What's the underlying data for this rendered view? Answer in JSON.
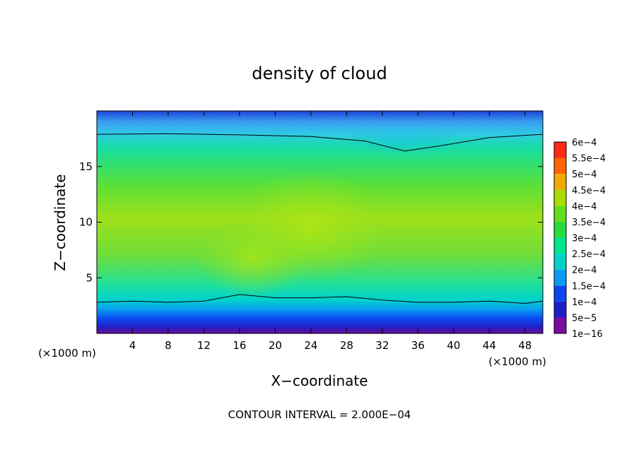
{
  "chart_data": {
    "type": "heatmap",
    "title": "density of cloud",
    "xlabel": "X−coordinate",
    "ylabel": "Z−coordinate",
    "x_unit": "(×1000 m)",
    "y_unit": "(×1000 m)",
    "xlim": [
      0,
      50
    ],
    "ylim": [
      0,
      20
    ],
    "x_ticks": [
      {
        "value": 4,
        "label": "4"
      },
      {
        "value": 8,
        "label": "8"
      },
      {
        "value": 12,
        "label": "12"
      },
      {
        "value": 16,
        "label": "16"
      },
      {
        "value": 20,
        "label": "20"
      },
      {
        "value": 24,
        "label": "24"
      },
      {
        "value": 28,
        "label": "28"
      },
      {
        "value": 32,
        "label": "32"
      },
      {
        "value": 36,
        "label": "36"
      },
      {
        "value": 40,
        "label": "40"
      },
      {
        "value": 44,
        "label": "44"
      },
      {
        "value": 48,
        "label": "48"
      }
    ],
    "y_ticks": [
      {
        "value": 5,
        "label": "5"
      },
      {
        "value": 10,
        "label": "10"
      },
      {
        "value": 15,
        "label": "15"
      }
    ],
    "colorbar": {
      "levels": [
        {
          "label": "1e−16",
          "color": "#7a0aa0"
        },
        {
          "label": "5e−5",
          "color": "#1e1ec8"
        },
        {
          "label": "1e−4",
          "color": "#0a46f0"
        },
        {
          "label": "1.5e−4",
          "color": "#0a9bf0"
        },
        {
          "label": "2e−4",
          "color": "#00d2c8"
        },
        {
          "label": "2.5e−4",
          "color": "#00e68c"
        },
        {
          "label": "3e−4",
          "color": "#28dc3c"
        },
        {
          "label": "3.5e−4",
          "color": "#64dc1e"
        },
        {
          "label": "4e−4",
          "color": "#aadc00"
        },
        {
          "label": "4.5e−4",
          "color": "#f0aa00"
        },
        {
          "label": "5e−4",
          "color": "#ff6400"
        },
        {
          "label": "5.5e−4",
          "color": "#ff2814"
        },
        {
          "label": "6e−4",
          "color": "#ff6e6e"
        }
      ]
    },
    "contour_interval_text": "CONTOUR INTERVAL = 2.000E−04",
    "contour_lines": [
      {
        "name": "upper 2e-4 contour",
        "points": [
          [
            0,
            17.9
          ],
          [
            8,
            17.95
          ],
          [
            16,
            17.85
          ],
          [
            24,
            17.7
          ],
          [
            30,
            17.3
          ],
          [
            34.5,
            16.4
          ],
          [
            38,
            16.8
          ],
          [
            44,
            17.6
          ],
          [
            50,
            17.9
          ]
        ]
      },
      {
        "name": "lower 2e-4 contour",
        "points": [
          [
            0,
            2.8
          ],
          [
            4,
            2.9
          ],
          [
            8,
            2.8
          ],
          [
            12,
            2.9
          ],
          [
            16,
            3.5
          ],
          [
            20,
            3.2
          ],
          [
            24,
            3.2
          ],
          [
            28,
            3.3
          ],
          [
            32,
            3.0
          ],
          [
            36,
            2.8
          ],
          [
            40,
            2.8
          ],
          [
            44,
            2.9
          ],
          [
            48,
            2.7
          ],
          [
            50,
            2.9
          ]
        ]
      }
    ],
    "grid": false
  }
}
